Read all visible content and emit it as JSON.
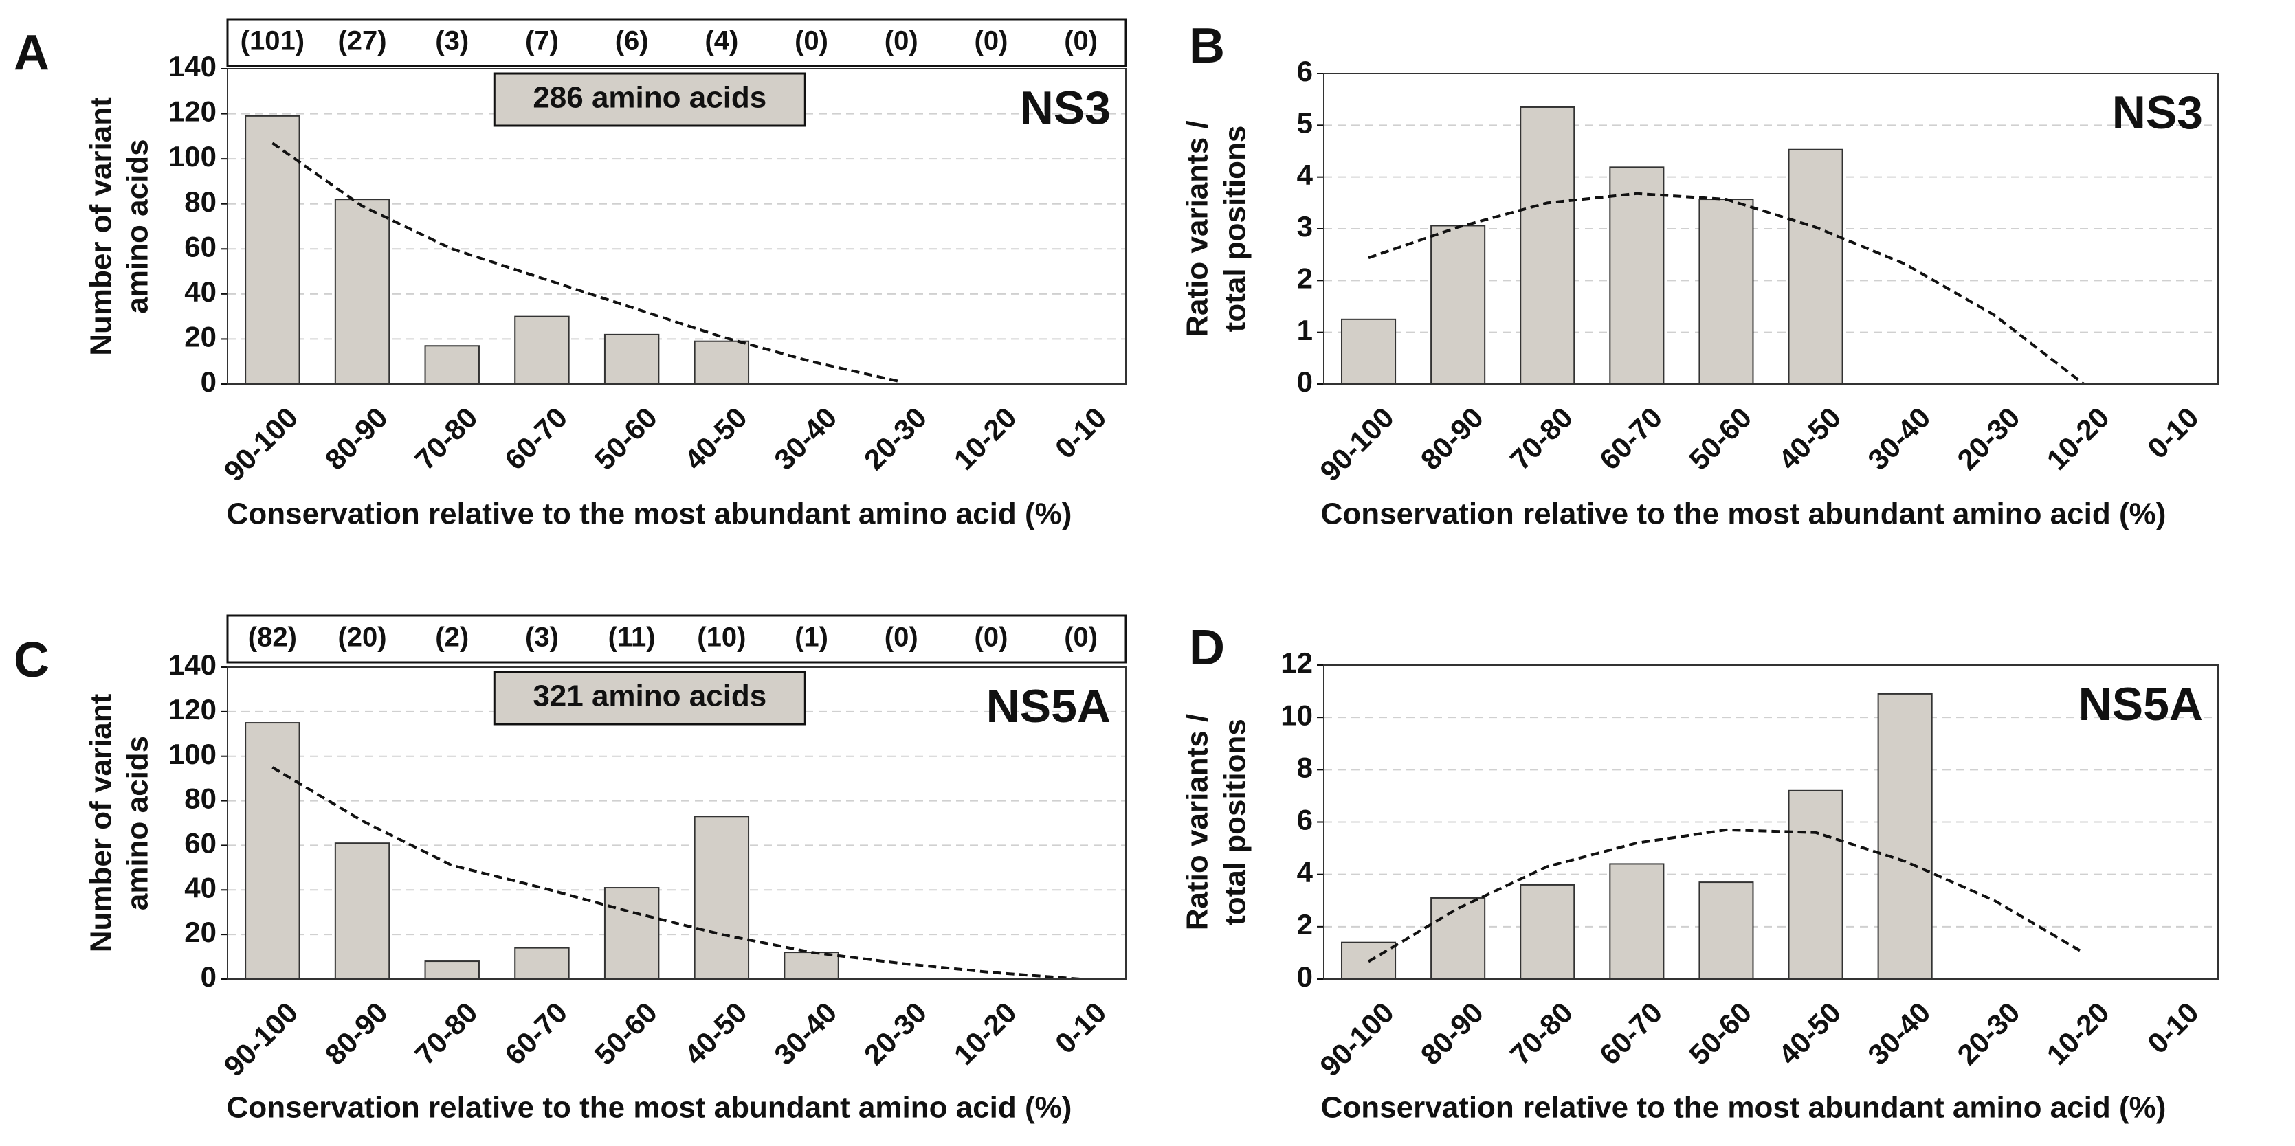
{
  "chart_data": [
    {
      "type": "bar",
      "panel_label": "A",
      "title": "NS3",
      "annotation": "286 amino acids",
      "count_labels": [
        "(101)",
        "(27)",
        "(3)",
        "(7)",
        "(6)",
        "(4)",
        "(0)",
        "(0)",
        "(0)",
        "(0)"
      ],
      "categories": [
        "90-100",
        "80-90",
        "70-80",
        "60-70",
        "50-60",
        "40-50",
        "30-40",
        "20-30",
        "10-20",
        "0-10"
      ],
      "values": [
        119,
        82,
        17,
        30,
        22,
        19,
        0,
        0,
        0,
        0
      ],
      "trend": [
        107,
        79,
        60,
        47,
        34,
        21,
        10,
        1,
        null,
        null
      ],
      "color": "#d3cfc8",
      "ylim": [
        0,
        140
      ],
      "yticks": [
        0,
        20,
        40,
        60,
        80,
        100,
        120,
        140
      ],
      "grid": true,
      "ylabel": [
        "Number of variant",
        "amino acids"
      ],
      "xlabel": "Conservation relative to the most abundant amino acid (%)"
    },
    {
      "type": "bar",
      "panel_label": "B",
      "title": "NS3",
      "categories": [
        "90-100",
        "80-90",
        "70-80",
        "60-70",
        "50-60",
        "40-50",
        "30-40",
        "20-30",
        "10-20",
        "0-10"
      ],
      "values": [
        1.25,
        3.06,
        5.35,
        4.19,
        3.57,
        4.53,
        0,
        0,
        0,
        0
      ],
      "trend": [
        2.44,
        3.03,
        3.5,
        3.68,
        3.57,
        3.03,
        2.32,
        1.33,
        0,
        null
      ],
      "color": "#d3cfc8",
      "ylim": [
        0,
        6
      ],
      "yticks": [
        0,
        1,
        2,
        3,
        4,
        5,
        6
      ],
      "grid": true,
      "ylabel": [
        "Ratio variants /",
        "total positions"
      ],
      "xlabel": "Conservation relative to the most abundant amino acid (%)"
    },
    {
      "type": "bar",
      "panel_label": "C",
      "title": "NS5A",
      "annotation": "321 amino acids",
      "count_labels": [
        "(82)",
        "(20)",
        "(2)",
        "(3)",
        "(11)",
        "(10)",
        "(1)",
        "(0)",
        "(0)",
        "(0)"
      ],
      "categories": [
        "90-100",
        "80-90",
        "70-80",
        "60-70",
        "50-60",
        "40-50",
        "30-40",
        "20-30",
        "10-20",
        "0-10"
      ],
      "values": [
        115,
        61,
        8,
        14,
        41,
        73,
        12,
        0,
        0,
        0
      ],
      "trend": [
        95,
        71,
        51,
        41,
        30,
        20,
        12,
        7,
        3,
        0
      ],
      "color": "#d3cfc8",
      "ylim": [
        0,
        140
      ],
      "yticks": [
        0,
        20,
        40,
        60,
        80,
        100,
        120,
        140
      ],
      "grid": true,
      "ylabel": [
        "Number of variant",
        "amino acids"
      ],
      "xlabel": "Conservation relative to the most abundant amino acid (%)"
    },
    {
      "type": "bar",
      "panel_label": "D",
      "title": "NS5A",
      "categories": [
        "90-100",
        "80-90",
        "70-80",
        "60-70",
        "50-60",
        "40-50",
        "30-40",
        "20-30",
        "10-20",
        "0-10"
      ],
      "values": [
        1.4,
        3.1,
        3.6,
        4.4,
        3.7,
        7.2,
        10.9,
        0,
        0,
        0
      ],
      "trend": [
        0.67,
        2.7,
        4.3,
        5.2,
        5.7,
        5.6,
        4.5,
        3.0,
        1.0,
        null
      ],
      "color": "#d3cfc8",
      "ylim": [
        0,
        12
      ],
      "yticks": [
        0,
        2,
        4,
        6,
        8,
        10,
        12
      ],
      "grid": true,
      "ylabel": [
        "Ratio variants /",
        "total positions"
      ],
      "xlabel": "Conservation relative to the most abundant amino acid (%)"
    }
  ]
}
